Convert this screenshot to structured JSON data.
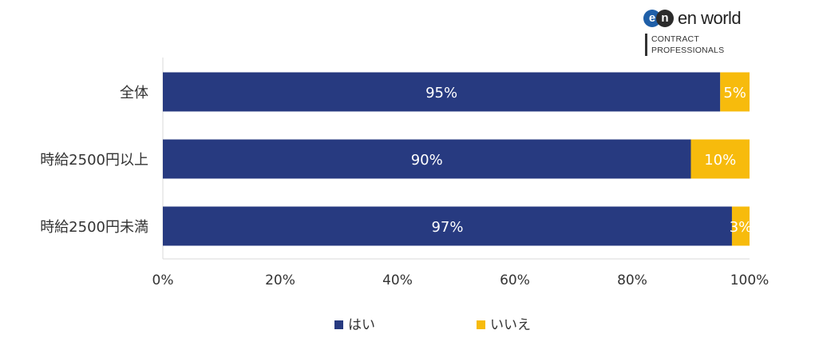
{
  "logo": {
    "badge_left": "e",
    "badge_right": "n",
    "name": "en world",
    "line1": "CONTRACT",
    "line2": "PROFESSIONALS"
  },
  "colors": {
    "yes": "#273a80",
    "no": "#f7bb0c",
    "axis": "#d9d9d9",
    "text": "#333333"
  },
  "chart_data": {
    "type": "bar",
    "orientation": "horizontal",
    "stacked": true,
    "categories": [
      "全体",
      "時給2500円以上",
      "時給2500円未満"
    ],
    "series": [
      {
        "name": "はい",
        "values": [
          95,
          90,
          97
        ],
        "labels": [
          "95%",
          "90%",
          "97%"
        ]
      },
      {
        "name": "いいえ",
        "values": [
          5,
          10,
          3
        ],
        "labels": [
          "5%",
          "10%",
          "3%"
        ]
      }
    ],
    "xlim": [
      0,
      100
    ],
    "xticks": [
      "0%",
      "20%",
      "40%",
      "60%",
      "80%",
      "100%"
    ],
    "grid": false,
    "legend": "bottom"
  }
}
